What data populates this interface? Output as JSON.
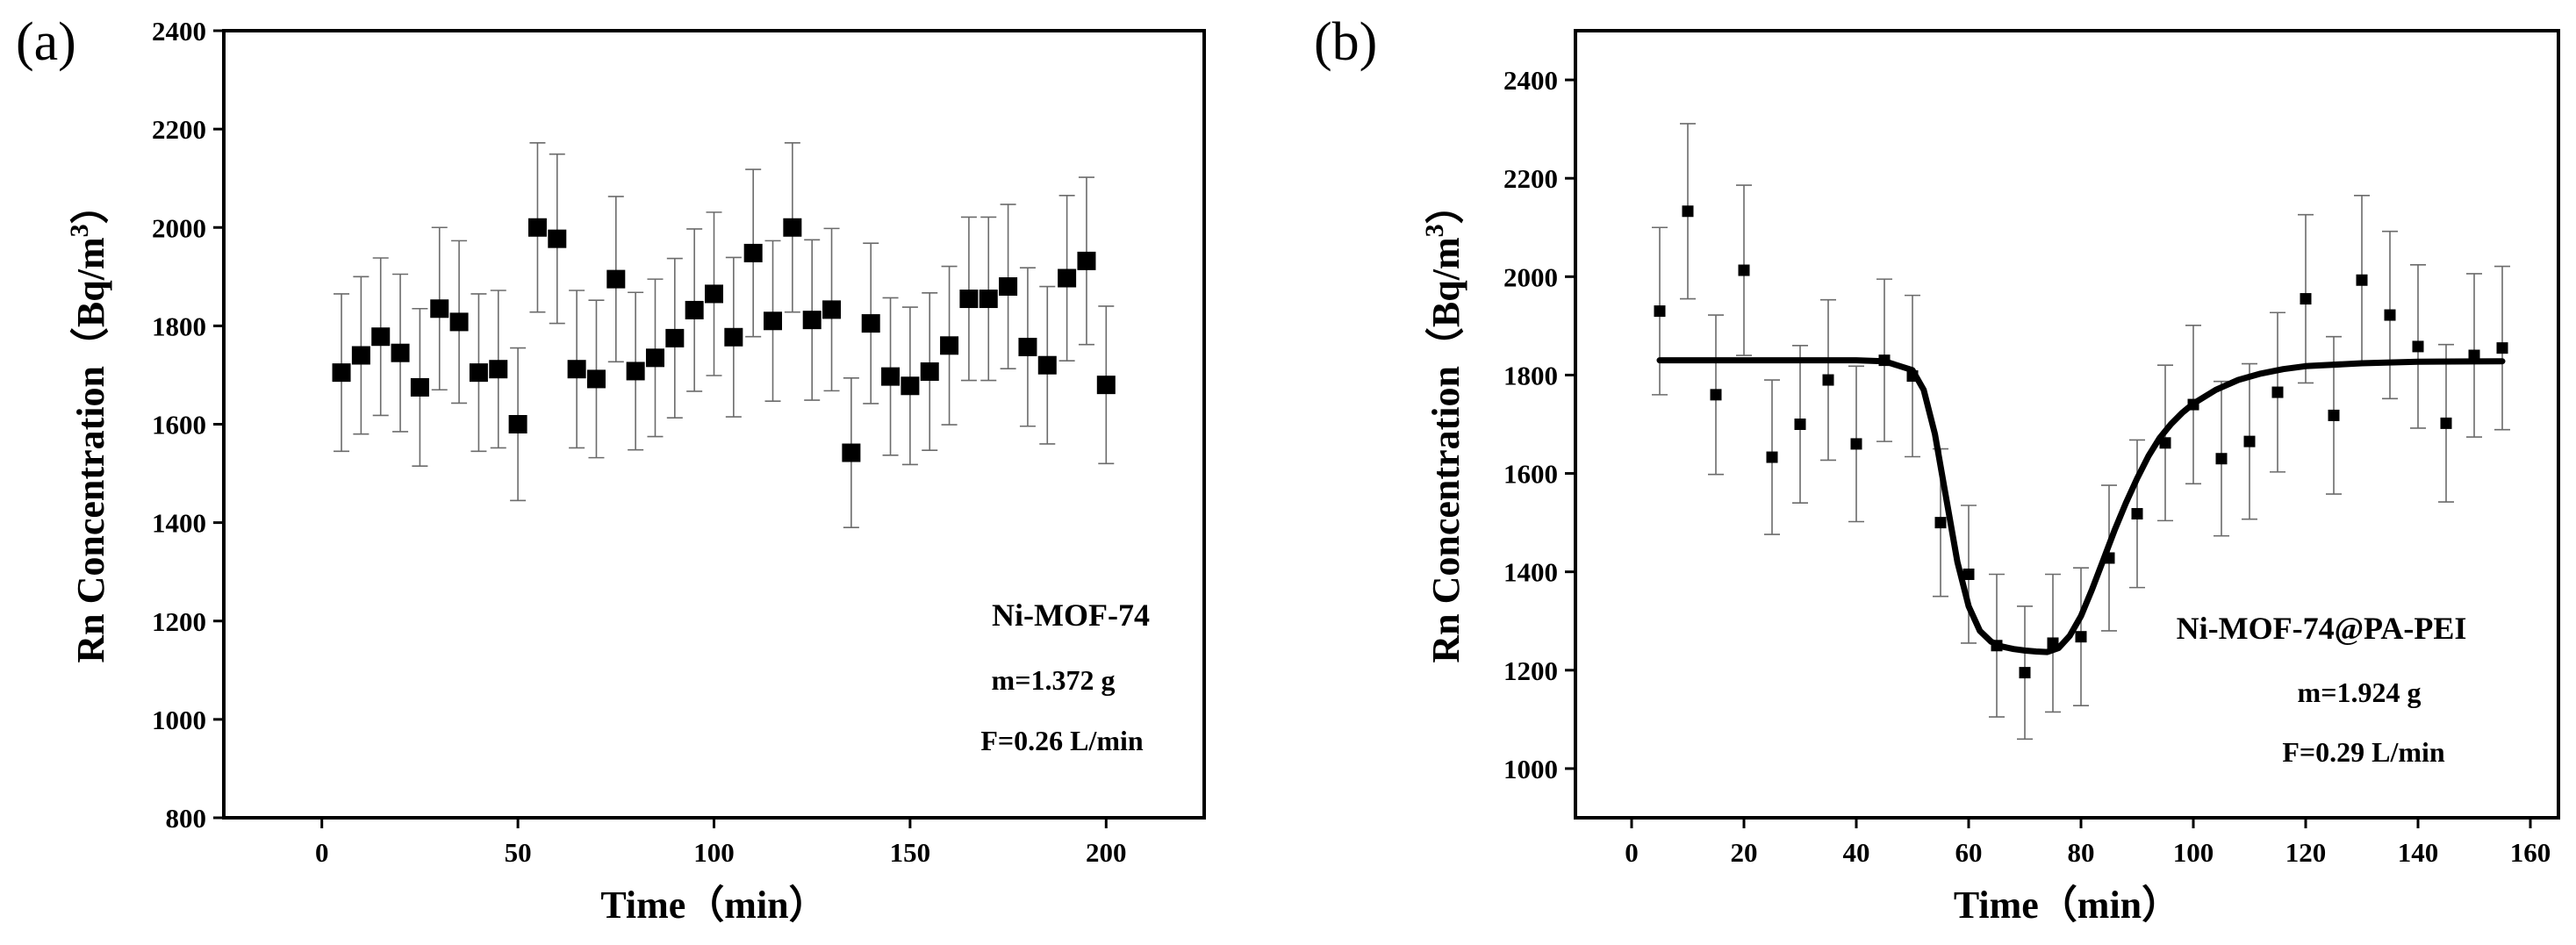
{
  "chart_data": [
    {
      "type": "scatter",
      "panel_label": "(a)",
      "xlabel": "Time（min）",
      "ylabel_main": "Rn Concentration（Bq/m",
      "ylabel_sup": "3",
      "ylabel_end": "）",
      "xlim": [
        -25,
        225
      ],
      "ylim": [
        800,
        2400
      ],
      "xticks": [
        0,
        50,
        100,
        150,
        200
      ],
      "yticks": [
        800,
        1000,
        1200,
        1400,
        1600,
        1800,
        2000,
        2200,
        2400
      ],
      "annotations": [
        "Ni-MOF-74",
        "m=1.372 g",
        "F=0.26 L/min"
      ],
      "series": [
        {
          "name": "Ni-MOF-74",
          "marker": "square",
          "points": [
            {
              "x": 5,
              "y": 1705,
              "err": 160
            },
            {
              "x": 10,
              "y": 1740,
              "err": 160
            },
            {
              "x": 15,
              "y": 1778,
              "err": 160
            },
            {
              "x": 20,
              "y": 1745,
              "err": 160
            },
            {
              "x": 25,
              "y": 1675,
              "err": 160
            },
            {
              "x": 30,
              "y": 1835,
              "err": 165
            },
            {
              "x": 35,
              "y": 1808,
              "err": 165
            },
            {
              "x": 40,
              "y": 1705,
              "err": 160
            },
            {
              "x": 45,
              "y": 1712,
              "err": 160
            },
            {
              "x": 50,
              "y": 1600,
              "err": 155
            },
            {
              "x": 55,
              "y": 2000,
              "err": 172
            },
            {
              "x": 60,
              "y": 1977,
              "err": 172
            },
            {
              "x": 65,
              "y": 1712,
              "err": 160
            },
            {
              "x": 70,
              "y": 1692,
              "err": 160
            },
            {
              "x": 75,
              "y": 1895,
              "err": 168
            },
            {
              "x": 80,
              "y": 1708,
              "err": 160
            },
            {
              "x": 85,
              "y": 1735,
              "err": 160
            },
            {
              "x": 90,
              "y": 1775,
              "err": 162
            },
            {
              "x": 95,
              "y": 1832,
              "err": 165
            },
            {
              "x": 100,
              "y": 1865,
              "err": 166
            },
            {
              "x": 105,
              "y": 1777,
              "err": 162
            },
            {
              "x": 110,
              "y": 1948,
              "err": 170
            },
            {
              "x": 115,
              "y": 1810,
              "err": 163
            },
            {
              "x": 120,
              "y": 2000,
              "err": 172
            },
            {
              "x": 125,
              "y": 1812,
              "err": 163
            },
            {
              "x": 130,
              "y": 1833,
              "err": 165
            },
            {
              "x": 135,
              "y": 1542,
              "err": 152
            },
            {
              "x": 140,
              "y": 1805,
              "err": 163
            },
            {
              "x": 145,
              "y": 1697,
              "err": 160
            },
            {
              "x": 150,
              "y": 1678,
              "err": 160
            },
            {
              "x": 155,
              "y": 1707,
              "err": 160
            },
            {
              "x": 160,
              "y": 1760,
              "err": 161
            },
            {
              "x": 165,
              "y": 1855,
              "err": 166
            },
            {
              "x": 170,
              "y": 1855,
              "err": 166
            },
            {
              "x": 175,
              "y": 1880,
              "err": 167
            },
            {
              "x": 180,
              "y": 1757,
              "err": 161
            },
            {
              "x": 185,
              "y": 1720,
              "err": 160
            },
            {
              "x": 190,
              "y": 1897,
              "err": 168
            },
            {
              "x": 195,
              "y": 1932,
              "err": 170
            },
            {
              "x": 200,
              "y": 1680,
              "err": 160
            }
          ]
        }
      ]
    },
    {
      "type": "scatter",
      "panel_label": "(b)",
      "xlabel": "Time（min）",
      "ylabel_main": "Rn Concentration（Bq/m",
      "ylabel_sup": "3",
      "ylabel_end": "）",
      "xlim": [
        -10,
        165
      ],
      "ylim": [
        900,
        2500
      ],
      "xticks": [
        0,
        20,
        40,
        60,
        80,
        100,
        120,
        140,
        160
      ],
      "yticks": [
        1000,
        1200,
        1400,
        1600,
        1800,
        2000,
        2200,
        2400
      ],
      "annotations": [
        "Ni-MOF-74@PA-PEI",
        "m=1.924 g",
        "F=0.29 L/min"
      ],
      "series": [
        {
          "name": "Ni-MOF-74@PA-PEI",
          "marker": "square",
          "points": [
            {
              "x": 5,
              "y": 1930,
              "err": 170
            },
            {
              "x": 10,
              "y": 2133,
              "err": 178
            },
            {
              "x": 15,
              "y": 1760,
              "err": 162
            },
            {
              "x": 20,
              "y": 2013,
              "err": 173
            },
            {
              "x": 25,
              "y": 1633,
              "err": 157
            },
            {
              "x": 30,
              "y": 1700,
              "err": 160
            },
            {
              "x": 35,
              "y": 1790,
              "err": 163
            },
            {
              "x": 40,
              "y": 1660,
              "err": 158
            },
            {
              "x": 45,
              "y": 1830,
              "err": 165
            },
            {
              "x": 50,
              "y": 1798,
              "err": 164
            },
            {
              "x": 55,
              "y": 1500,
              "err": 150
            },
            {
              "x": 60,
              "y": 1395,
              "err": 140
            },
            {
              "x": 65,
              "y": 1250,
              "err": 145
            },
            {
              "x": 70,
              "y": 1195,
              "err": 135
            },
            {
              "x": 75,
              "y": 1255,
              "err": 140
            },
            {
              "x": 80,
              "y": 1268,
              "err": 140
            },
            {
              "x": 85,
              "y": 1428,
              "err": 148
            },
            {
              "x": 90,
              "y": 1518,
              "err": 150
            },
            {
              "x": 95,
              "y": 1662,
              "err": 158
            },
            {
              "x": 100,
              "y": 1740,
              "err": 161
            },
            {
              "x": 105,
              "y": 1630,
              "err": 157
            },
            {
              "x": 110,
              "y": 1665,
              "err": 158
            },
            {
              "x": 115,
              "y": 1765,
              "err": 162
            },
            {
              "x": 120,
              "y": 1955,
              "err": 171
            },
            {
              "x": 125,
              "y": 1718,
              "err": 160
            },
            {
              "x": 130,
              "y": 1993,
              "err": 172
            },
            {
              "x": 135,
              "y": 1922,
              "err": 170
            },
            {
              "x": 140,
              "y": 1858,
              "err": 166
            },
            {
              "x": 145,
              "y": 1702,
              "err": 160
            },
            {
              "x": 150,
              "y": 1840,
              "err": 166
            },
            {
              "x": 155,
              "y": 1855,
              "err": 166
            }
          ]
        },
        {
          "name": "fit",
          "type": "line",
          "x": [
            5,
            20,
            40,
            45,
            50,
            52,
            54,
            56,
            58,
            60,
            62,
            64,
            66,
            68,
            70,
            72,
            74,
            76,
            78,
            80,
            82,
            84,
            86,
            88,
            90,
            92,
            94,
            96,
            98,
            100,
            104,
            108,
            112,
            116,
            120,
            130,
            140,
            155
          ],
          "y": [
            1830,
            1830,
            1830,
            1828,
            1810,
            1770,
            1680,
            1550,
            1420,
            1330,
            1280,
            1258,
            1248,
            1243,
            1240,
            1238,
            1237,
            1245,
            1270,
            1310,
            1365,
            1425,
            1485,
            1540,
            1590,
            1635,
            1672,
            1700,
            1723,
            1742,
            1770,
            1790,
            1803,
            1812,
            1818,
            1824,
            1827,
            1828
          ]
        }
      ]
    }
  ]
}
